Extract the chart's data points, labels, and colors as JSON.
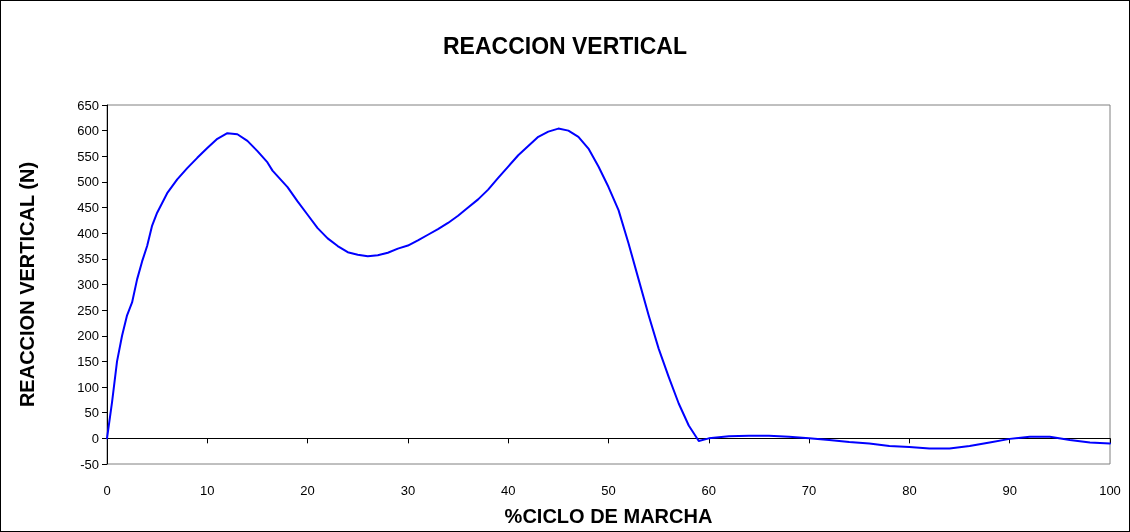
{
  "chart_data": {
    "type": "line",
    "title": "REACCION VERTICAL",
    "xlabel": "%CICLO DE MARCHA",
    "ylabel": "REACCION VERTICAL (N)",
    "x": [
      0,
      0.5,
      1,
      1.5,
      2,
      2.5,
      3,
      3.5,
      4,
      4.5,
      5,
      6,
      7,
      8,
      9,
      10,
      11,
      12,
      13,
      14,
      15,
      16,
      16.5,
      18,
      19,
      20,
      21,
      22,
      23,
      24,
      25,
      26,
      27,
      28,
      29,
      30,
      31,
      32,
      33,
      34,
      35,
      36,
      37,
      38,
      39,
      40,
      41,
      42,
      43,
      44,
      45,
      46,
      47,
      48,
      49,
      50,
      51,
      52,
      53,
      54,
      55,
      56,
      57,
      58,
      59,
      60,
      62,
      64,
      66,
      68,
      70,
      72,
      74,
      76,
      78,
      80,
      82,
      84,
      86,
      88,
      90,
      92,
      94,
      96,
      98,
      100
    ],
    "series": [
      {
        "color": "#0000ff",
        "values": [
          0,
          70,
          150,
          200,
          240,
          265,
          310,
          345,
          375,
          415,
          440,
          478,
          505,
          527,
          547,
          566,
          584,
          595,
          593,
          580,
          560,
          538,
          522,
          490,
          462,
          436,
          410,
          390,
          375,
          363,
          358,
          355,
          357,
          362,
          370,
          376,
          386,
          397,
          408,
          420,
          434,
          450,
          466,
          485,
          508,
          530,
          552,
          570,
          588,
          598,
          604,
          600,
          588,
          565,
          530,
          490,
          445,
          380,
          310,
          240,
          175,
          120,
          68,
          25,
          -5,
          0,
          4,
          5,
          5,
          3,
          0,
          -3,
          -7,
          -10,
          -15,
          -17,
          -20,
          -20,
          -15,
          -8,
          -1,
          3,
          3,
          -3,
          -8,
          -10
        ]
      }
    ],
    "xlim": [
      0,
      100
    ],
    "xticks": [
      0,
      10,
      20,
      30,
      40,
      50,
      60,
      70,
      80,
      90,
      100
    ],
    "ylim": [
      -50,
      650
    ],
    "yticks": [
      -50,
      0,
      50,
      100,
      150,
      200,
      250,
      300,
      350,
      400,
      450,
      500,
      550,
      600,
      650
    ],
    "marker": "none",
    "line_style": "solid"
  }
}
